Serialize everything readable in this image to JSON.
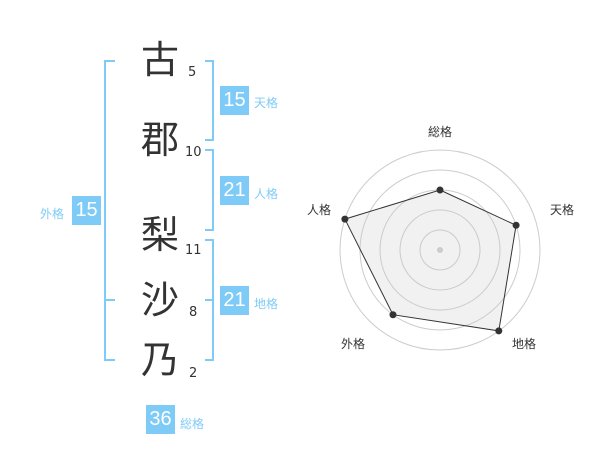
{
  "name_chars": [
    {
      "char": "古",
      "strokes": "5"
    },
    {
      "char": "郡",
      "strokes": "10"
    },
    {
      "char": "梨",
      "strokes": "11"
    },
    {
      "char": "沙",
      "strokes": "8"
    },
    {
      "char": "乃",
      "strokes": "2"
    }
  ],
  "kaku": {
    "tenkaku": {
      "value": "15",
      "label": "天格"
    },
    "jinkaku": {
      "value": "21",
      "label": "人格"
    },
    "chikaku": {
      "value": "21",
      "label": "地格"
    },
    "gaikaku": {
      "value": "15",
      "label": "外格"
    },
    "soukaku": {
      "value": "36",
      "label": "総格"
    }
  },
  "accent_color": "#7fcbf7",
  "radar": {
    "axes": [
      "総格",
      "天格",
      "地格",
      "外格",
      "人格"
    ],
    "values": [
      3,
      4,
      5,
      4,
      5
    ],
    "max": 5,
    "rings": 5
  }
}
